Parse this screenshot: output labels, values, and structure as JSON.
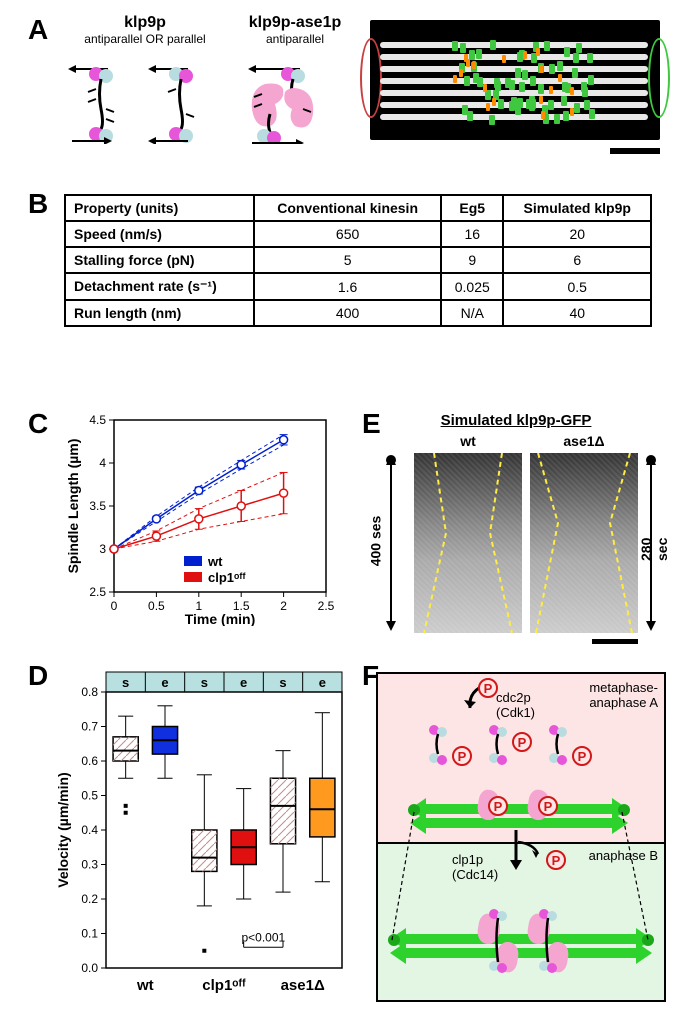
{
  "panelA": {
    "label": "A",
    "col1_title": "klp9p",
    "col1_sub": "antiparallel OR parallel",
    "col2_title": "klp9p-ase1p",
    "col2_sub": "antiparallel",
    "colors": {
      "head1": "#e756d8",
      "head2": "#b8dce0",
      "ase1": "#f5a6d0",
      "mt": "#000000"
    }
  },
  "panelB": {
    "label": "B",
    "columns": [
      "Property (units)",
      "Conventional kinesin",
      "Eg5",
      "Simulated klp9p"
    ],
    "rows": [
      [
        "Speed (nm/s)",
        "650",
        "16",
        "20"
      ],
      [
        "Stalling force (pN)",
        "5",
        "9",
        "6"
      ],
      [
        "Detachment rate (s⁻¹)",
        "1.6",
        "0.025",
        "0.5"
      ],
      [
        "Run length (nm)",
        "400",
        "N/A",
        "40"
      ]
    ]
  },
  "panelC": {
    "label": "C",
    "ylabel": "Spindle Length (µm)",
    "xlabel": "Time (min)",
    "ylim": [
      2.5,
      4.5
    ],
    "ytick_step": 0.5,
    "xlim": [
      0,
      2.5
    ],
    "xtick_step": 0.5,
    "series": [
      {
        "name": "wt",
        "color": "#0020d0",
        "x": [
          0,
          0.5,
          1,
          1.5,
          2
        ],
        "y": [
          3.0,
          3.35,
          3.68,
          3.98,
          4.27
        ],
        "err": [
          0,
          0.03,
          0.04,
          0.05,
          0.06
        ]
      },
      {
        "name": "clp1ᵒᶠᶠ",
        "color": "#e01010",
        "x": [
          0,
          0.5,
          1,
          1.5,
          2
        ],
        "y": [
          3.0,
          3.15,
          3.35,
          3.5,
          3.65
        ],
        "err": [
          0,
          0.06,
          0.12,
          0.18,
          0.24
        ]
      }
    ],
    "legend": [
      "wt",
      "clp1ᵒᶠᶠ"
    ]
  },
  "panelD": {
    "label": "D",
    "ylabel": "Velocity (µm/min)",
    "ylim": [
      0,
      0.8
    ],
    "ytick_step": 0.1,
    "header_labels": [
      "s",
      "e",
      "s",
      "e",
      "s",
      "e"
    ],
    "groups": [
      "wt",
      "clp1ᵒᶠᶠ",
      "ase1Δ"
    ],
    "boxes": [
      {
        "fill": "#ffffff",
        "hatch": true,
        "median": 0.63,
        "q1": 0.6,
        "q3": 0.67,
        "lo": 0.55,
        "hi": 0.73,
        "out": [
          0.45,
          0.47
        ]
      },
      {
        "fill": "#1030e0",
        "hatch": false,
        "median": 0.66,
        "q1": 0.62,
        "q3": 0.7,
        "lo": 0.55,
        "hi": 0.76,
        "out": []
      },
      {
        "fill": "#ffffff",
        "hatch": true,
        "median": 0.32,
        "q1": 0.28,
        "q3": 0.4,
        "lo": 0.18,
        "hi": 0.56,
        "out": [
          0.05
        ]
      },
      {
        "fill": "#e01010",
        "hatch": false,
        "median": 0.35,
        "q1": 0.3,
        "q3": 0.4,
        "lo": 0.2,
        "hi": 0.52,
        "out": []
      },
      {
        "fill": "#ffffff",
        "hatch": true,
        "median": 0.47,
        "q1": 0.36,
        "q3": 0.55,
        "lo": 0.22,
        "hi": 0.63,
        "out": []
      },
      {
        "fill": "#ff9a1f",
        "hatch": false,
        "median": 0.46,
        "q1": 0.38,
        "q3": 0.55,
        "lo": 0.25,
        "hi": 0.74,
        "out": []
      }
    ],
    "pvalue_text": "p<0.001",
    "colors": {
      "header_bg": "#b8e0e0"
    }
  },
  "panelE": {
    "label": "E",
    "title": "Simulated klp9p-GFP",
    "cols": [
      "wt",
      "ase1Δ"
    ],
    "left_time": "400 ses",
    "right_time": "280 sec",
    "outline_color": "#ffeb3b"
  },
  "panelF": {
    "label": "F",
    "text_metaphase": "metaphase-\nanaphase A",
    "text_anaphaseB": "anaphase B",
    "kinase": "cdc2p\n(Cdk1)",
    "phosphatase": "clp1p\n(Cdc14)",
    "p_symbol": "P",
    "colors": {
      "top_bg": "#fde5e5",
      "bot_bg": "#e3f5e3",
      "arrow": "#2dd22d",
      "ase1": "#f5a6d0",
      "p_ring": "#d01818"
    }
  }
}
